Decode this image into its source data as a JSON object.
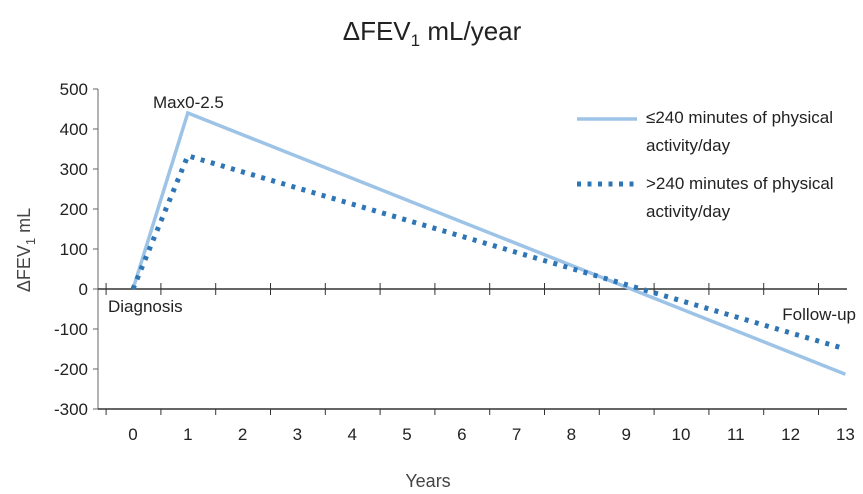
{
  "chart_data": {
    "type": "line",
    "title": {
      "main": "ΔFEV",
      "sub": "1",
      "rest": " mL/year"
    },
    "xlabel": "Years",
    "ylabel": {
      "main": "ΔFEV",
      "sub": "1",
      "rest": " mL"
    },
    "xlim": [
      0,
      13
    ],
    "ylim": [
      -300,
      500
    ],
    "x_ticks": [
      0,
      1,
      2,
      3,
      4,
      5,
      6,
      7,
      8,
      9,
      10,
      11,
      12,
      13
    ],
    "y_ticks": [
      500,
      400,
      300,
      200,
      100,
      0,
      -100,
      -200,
      -300
    ],
    "series": [
      {
        "name_lines": [
          "≤240 minutes of physical",
          "activity/day"
        ],
        "color": "#9dc3e6",
        "style": "solid",
        "x": [
          0,
          1,
          13
        ],
        "y": [
          0,
          440,
          -213
        ]
      },
      {
        "name_lines": [
          ">240 minutes of physical",
          "activity/day"
        ],
        "color": "#2e75b6",
        "style": "dotted",
        "x": [
          0,
          1,
          13
        ],
        "y": [
          0,
          333,
          -150
        ]
      }
    ],
    "annotations": {
      "peak": "Max0-2.5",
      "start": "Diagnosis",
      "end": "Follow-up"
    },
    "legend_position": "top-right",
    "grid": false
  }
}
